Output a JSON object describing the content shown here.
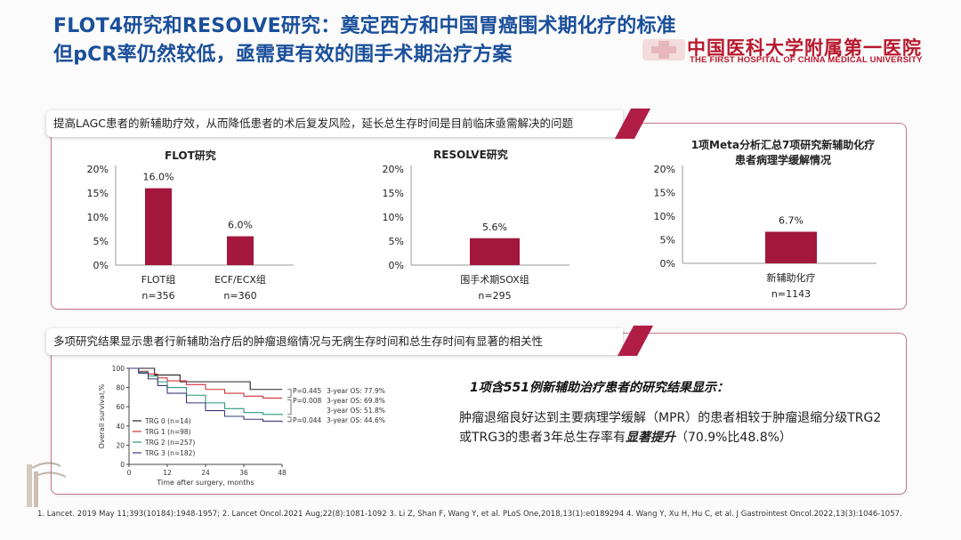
{
  "title": {
    "line1": "FLOT4研究和RESOLVE研究：奠定西方和中国胃癌围术期化疗的标准",
    "line2": "但pCR率仍然较低，亟需更有效的围手术期治疗方案"
  },
  "logo": {
    "cn": "中国医科大学附属第一医院",
    "en": "THE FIRST HOSPITAL OF CHINA MEDICAL UNIVERSITY"
  },
  "section1": {
    "header": "提高LAGC患者的新辅助疗效，从而降低患者的术后复发风险，延长总生存时间是目前临床亟需解决的问题"
  },
  "section2": {
    "header": "多项研究结果显示患者行新辅助治疗后的肿瘤退缩情况与无病生存时间和总生存时间有显著的相关性"
  },
  "chart_data": [
    {
      "type": "bar",
      "title": "FLOT研究",
      "categories": [
        "FLOT组",
        "ECF/ECX组"
      ],
      "n_labels": [
        "n=356",
        "n=360"
      ],
      "values": [
        16.0,
        6.0
      ],
      "value_labels": [
        "16.0%",
        "6.0%"
      ],
      "yticks": [
        "0%",
        "5%",
        "10%",
        "15%",
        "20%"
      ],
      "ylim": [
        0,
        20
      ]
    },
    {
      "type": "bar",
      "title": "RESOLVE研究",
      "categories": [
        "围手术期SOX组"
      ],
      "n_labels": [
        "n=295"
      ],
      "values": [
        5.6
      ],
      "value_labels": [
        "5.6%"
      ],
      "yticks": [
        "0%",
        "5%",
        "10%",
        "15%",
        "20%"
      ],
      "ylim": [
        0,
        20
      ]
    },
    {
      "type": "bar",
      "title": "1项Meta分析汇总7项研究新辅助化疗患者病理学缓解情况",
      "title_lines": [
        "1项Meta分析汇总7项研究新辅助化疗",
        "患者病理学缓解情况"
      ],
      "categories": [
        "新辅助化疗"
      ],
      "n_labels": [
        "n=1143"
      ],
      "values": [
        6.7
      ],
      "value_labels": [
        "6.7%"
      ],
      "yticks": [
        "0%",
        "5%",
        "10%",
        "15%",
        "20%"
      ],
      "ylim": [
        0,
        20
      ]
    },
    {
      "type": "line",
      "title": "",
      "xlabel": "Time after surgery, months",
      "ylabel": "Overall survival,%",
      "xticks": [
        "0",
        "12",
        "24",
        "36",
        "48"
      ],
      "yticks": [
        "0",
        "20",
        "40",
        "60",
        "80",
        "100"
      ],
      "xlim": [
        0,
        48
      ],
      "ylim": [
        0,
        100
      ],
      "series": [
        {
          "name": "TRG 0 (n=14)",
          "color": "#222222",
          "x": [
            0,
            6,
            8,
            12,
            16,
            36,
            38,
            48
          ],
          "y": [
            100,
            100,
            93,
            93,
            86,
            86,
            78,
            78
          ]
        },
        {
          "name": "TRG 1 (n=98)",
          "color": "#d0303c",
          "x": [
            0,
            3,
            6,
            9,
            12,
            18,
            24,
            30,
            36,
            42,
            48
          ],
          "y": [
            100,
            97,
            94,
            90,
            87,
            83,
            78,
            74,
            71,
            69,
            69
          ]
        },
        {
          "name": "TRG 2 (n=257)",
          "color": "#2a9a7c",
          "x": [
            0,
            3,
            6,
            9,
            12,
            18,
            24,
            30,
            36,
            42,
            48
          ],
          "y": [
            100,
            96,
            92,
            86,
            80,
            72,
            64,
            58,
            54,
            52,
            51
          ]
        },
        {
          "name": "TRG 3 (n=182)",
          "color": "#3a3a7a",
          "x": [
            0,
            3,
            6,
            9,
            12,
            18,
            24,
            30,
            36,
            42,
            48
          ],
          "y": [
            100,
            95,
            89,
            82,
            74,
            64,
            56,
            50,
            47,
            45,
            44
          ]
        }
      ],
      "annotations": [
        {
          "p": "P=0.445",
          "os": "3-year OS: 77.9%"
        },
        {
          "p": "P=0.008",
          "os": "3-year OS: 69.8%"
        },
        {
          "p": "",
          "os": "3-year OS: 51.8%"
        },
        {
          "p": "P=0.044",
          "os": "3-year OS: 44.6%"
        }
      ]
    }
  ],
  "findings": {
    "title": "1项含551例新辅助治疗患者的研究结果显示：",
    "body_part1": "肿瘤退缩良好达到主要病理学缓解（MPR）的患者相较于肿瘤退缩分级TRG2或TRG3的患者3年总生存率有",
    "body_emph": "显著提升",
    "body_part2": "（70.9%比48.8%）"
  },
  "references": "1. Lancet. 2019 May 11;393(10184):1948-1957;   2. Lancet Oncol.2021 Aug;22(8):1081-1092  3. Li Z, Shan F, Wang Y, et al. PLoS One,2018,13(1):e0189294  4. Wang Y, Xu H, Hu C, et al. J Gastrointest Oncol.2022,13(3):1046-1057.",
  "colors": {
    "title_blue": "#1a4f9a",
    "accent": "#b01e45",
    "bar": "#a3173d"
  }
}
